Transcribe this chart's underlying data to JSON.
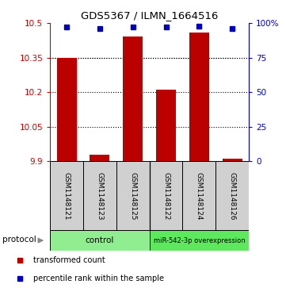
{
  "title": "GDS5367 / ILMN_1664516",
  "samples": [
    "GSM1148121",
    "GSM1148123",
    "GSM1148125",
    "GSM1148122",
    "GSM1148124",
    "GSM1148126"
  ],
  "transformed_counts": [
    10.35,
    9.93,
    10.44,
    10.21,
    10.46,
    9.91
  ],
  "percentile_ranks": [
    97,
    96,
    97,
    97,
    98,
    96
  ],
  "y_min": 9.9,
  "y_max": 10.5,
  "y_ticks": [
    9.9,
    10.05,
    10.2,
    10.35,
    10.5
  ],
  "y_tick_labels": [
    "9.9",
    "10.05",
    "10.2",
    "10.35",
    "10.5"
  ],
  "right_y_ticks": [
    0,
    25,
    50,
    75,
    100
  ],
  "right_y_labels": [
    "0",
    "25",
    "50",
    "75",
    "100%"
  ],
  "groups": [
    {
      "label": "control",
      "span": [
        0,
        3
      ],
      "color": "#90EE90"
    },
    {
      "label": "miR-542-3p overexpression",
      "span": [
        3,
        6
      ],
      "color": "#5EE85E"
    }
  ],
  "bar_color": "#BB0000",
  "dot_color": "#0000BB",
  "bar_width": 0.6,
  "background_color": "#ffffff",
  "left_axis_color": "#CC0000",
  "right_axis_color": "#0000CC",
  "sample_box_color": "#d0d0d0",
  "protocol_label": "protocol",
  "legend_items": [
    {
      "color": "#BB0000",
      "marker": "s",
      "label": "transformed count"
    },
    {
      "color": "#0000BB",
      "marker": "s",
      "label": "percentile rank within the sample"
    }
  ]
}
